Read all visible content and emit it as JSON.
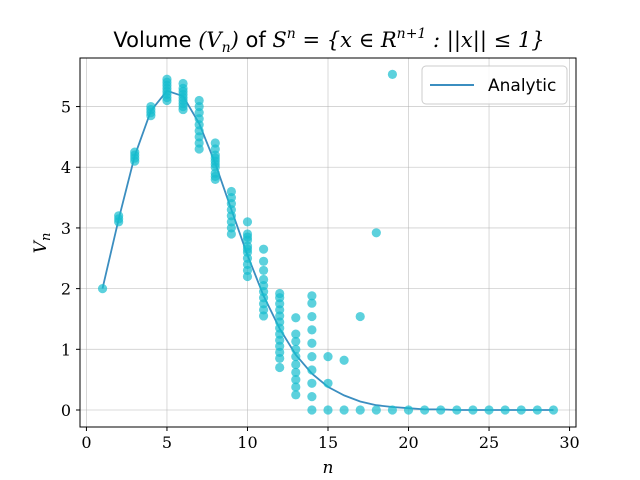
{
  "chart_data": {
    "type": "scatter",
    "title_prefix": "Volume ",
    "title_vn": "(V",
    "title_vn_sub": "n",
    "title_vn_close": ")",
    "title_of": " of ",
    "title_set": "S",
    "title_set_sup": "n",
    "title_eq": " = {x ∈ R",
    "title_eq_sup": "n+1",
    "title_cond": " : ||x|| ≤ 1}",
    "xlabel": "n",
    "ylabel": "V",
    "ylabel_sub": "n",
    "xlim": [
      -0.4,
      30.4
    ],
    "ylim": [
      -0.28,
      5.8
    ],
    "xticks": [
      0,
      5,
      10,
      15,
      20,
      25,
      30
    ],
    "yticks": [
      0,
      1,
      2,
      3,
      4,
      5
    ],
    "grid": true,
    "legend": {
      "position": "top-right",
      "entries": [
        "Analytic"
      ]
    },
    "series": [
      {
        "name": "Analytic",
        "kind": "line",
        "color": "#3b8ec0",
        "x": [
          1,
          2,
          3,
          4,
          5,
          6,
          7,
          8,
          9,
          10,
          11,
          12,
          13,
          14,
          15,
          16,
          17,
          18,
          19,
          20,
          21,
          22,
          23,
          24,
          25,
          26,
          27,
          28,
          29
        ],
        "y": [
          2.0,
          3.14,
          4.19,
          4.93,
          5.26,
          5.17,
          4.72,
          4.06,
          3.3,
          2.55,
          1.88,
          1.34,
          0.91,
          0.6,
          0.38,
          0.24,
          0.14,
          0.08,
          0.05,
          0.03,
          0.01,
          0.01,
          0.0,
          0.0,
          0.0,
          0.0,
          0.0,
          0.0,
          0.0
        ]
      },
      {
        "kind": "scatter",
        "color": "#17becf",
        "groups": [
          {
            "x": 1,
            "y": [
              2.0
            ]
          },
          {
            "x": 2,
            "y": [
              3.1,
              3.15,
              3.2
            ]
          },
          {
            "x": 3,
            "y": [
              4.1,
              4.15,
              4.2,
              4.25
            ]
          },
          {
            "x": 4,
            "y": [
              4.85,
              4.9,
              4.95,
              5.0
            ]
          },
          {
            "x": 5,
            "y": [
              5.1,
              5.15,
              5.2,
              5.25,
              5.3,
              5.35,
              5.4,
              5.45
            ]
          },
          {
            "x": 6,
            "y": [
              4.95,
              5.0,
              5.05,
              5.1,
              5.15,
              5.2,
              5.25,
              5.3,
              5.38
            ]
          },
          {
            "x": 7,
            "y": [
              4.3,
              4.4,
              4.5,
              4.6,
              4.7,
              4.8,
              4.9,
              5.0,
              5.1
            ]
          },
          {
            "x": 8,
            "y": [
              3.8,
              3.85,
              3.9,
              4.0,
              4.05,
              4.1,
              4.15,
              4.2,
              4.3,
              4.4
            ]
          },
          {
            "x": 9,
            "y": [
              2.9,
              3.0,
              3.1,
              3.2,
              3.3,
              3.4,
              3.5,
              3.6
            ]
          },
          {
            "x": 10,
            "y": [
              2.2,
              2.3,
              2.4,
              2.5,
              2.6,
              2.65,
              2.7,
              2.8,
              2.85,
              2.9,
              3.1
            ]
          },
          {
            "x": 11,
            "y": [
              1.55,
              1.65,
              1.75,
              1.85,
              1.95,
              2.05,
              2.15,
              2.3,
              2.45,
              2.65
            ]
          },
          {
            "x": 12,
            "y": [
              0.7,
              0.85,
              0.95,
              1.05,
              1.15,
              1.25,
              1.35,
              1.45,
              1.55,
              1.65,
              1.75,
              1.85,
              1.92
            ]
          },
          {
            "x": 13,
            "y": [
              0.25,
              0.38,
              0.5,
              0.62,
              0.75,
              0.88,
              1.0,
              1.13,
              1.25,
              1.52
            ]
          },
          {
            "x": 14,
            "y": [
              0.0,
              0.22,
              0.44,
              0.66,
              0.88,
              1.1,
              1.32,
              1.54,
              1.76,
              1.88
            ]
          },
          {
            "x": 15,
            "y": [
              0.0,
              0.44,
              0.88
            ]
          },
          {
            "x": 16,
            "y": [
              0.0,
              0.82
            ]
          },
          {
            "x": 17,
            "y": [
              0.0,
              1.54
            ]
          },
          {
            "x": 18,
            "y": [
              0.0,
              2.92
            ]
          },
          {
            "x": 19,
            "y": [
              0.0,
              5.53
            ]
          },
          {
            "x": 20,
            "y": [
              0.0
            ]
          },
          {
            "x": 21,
            "y": [
              0.0
            ]
          },
          {
            "x": 22,
            "y": [
              0.0
            ]
          },
          {
            "x": 23,
            "y": [
              0.0
            ]
          },
          {
            "x": 24,
            "y": [
              0.0
            ]
          },
          {
            "x": 25,
            "y": [
              0.0
            ]
          },
          {
            "x": 26,
            "y": [
              0.0
            ]
          },
          {
            "x": 27,
            "y": [
              0.0
            ]
          },
          {
            "x": 28,
            "y": [
              0.0
            ]
          },
          {
            "x": 29,
            "y": [
              0.0
            ]
          }
        ]
      }
    ]
  }
}
